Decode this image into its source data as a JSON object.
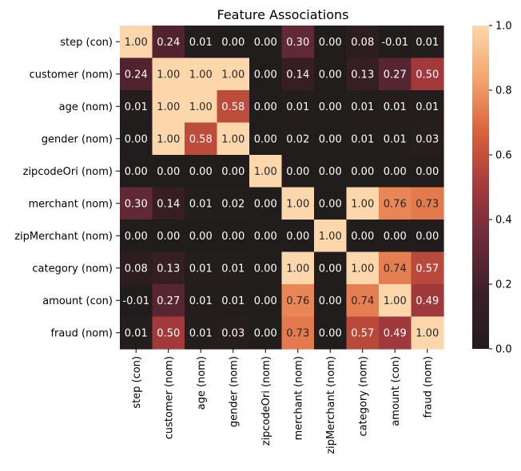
{
  "chart_data": {
    "type": "heatmap",
    "title": "Feature Associations",
    "rows": [
      "step (con)",
      "customer (nom)",
      "age (nom)",
      "gender (nom)",
      "zipcodeOri (nom)",
      "merchant (nom)",
      "zipMerchant (nom)",
      "category (nom)",
      "amount (con)",
      "fraud (nom)"
    ],
    "columns": [
      "step (con)",
      "customer (nom)",
      "age (nom)",
      "gender (nom)",
      "zipcodeOri (nom)",
      "merchant (nom)",
      "zipMerchant (nom)",
      "category (nom)",
      "amount (con)",
      "fraud (nom)"
    ],
    "values": [
      [
        1.0,
        0.24,
        0.01,
        0.0,
        0.0,
        0.3,
        0.0,
        0.08,
        -0.01,
        0.01
      ],
      [
        0.24,
        1.0,
        1.0,
        1.0,
        0.0,
        0.14,
        0.0,
        0.13,
        0.27,
        0.5
      ],
      [
        0.01,
        1.0,
        1.0,
        0.58,
        0.0,
        0.01,
        0.0,
        0.01,
        0.01,
        0.01
      ],
      [
        0.0,
        1.0,
        0.58,
        1.0,
        0.0,
        0.02,
        0.0,
        0.01,
        0.01,
        0.03
      ],
      [
        0.0,
        0.0,
        0.0,
        0.0,
        1.0,
        0.0,
        0.0,
        0.0,
        0.0,
        0.0
      ],
      [
        0.3,
        0.14,
        0.01,
        0.02,
        0.0,
        1.0,
        0.0,
        1.0,
        0.76,
        0.73
      ],
      [
        0.0,
        0.0,
        0.0,
        0.0,
        0.0,
        0.0,
        1.0,
        0.0,
        0.0,
        0.0
      ],
      [
        0.08,
        0.13,
        0.01,
        0.01,
        0.0,
        1.0,
        0.0,
        1.0,
        0.74,
        0.57
      ],
      [
        -0.01,
        0.27,
        0.01,
        0.01,
        0.0,
        0.76,
        0.0,
        0.74,
        1.0,
        0.49
      ],
      [
        0.01,
        0.5,
        0.01,
        0.03,
        0.0,
        0.73,
        0.0,
        0.57,
        0.49,
        1.0
      ]
    ],
    "value_format": "2 decimals",
    "colorbar": {
      "range": [
        0.0,
        1.0
      ],
      "ticks": [
        "0.0",
        "0.2",
        "0.4",
        "0.6",
        "0.8",
        "1.0"
      ],
      "colormap": [
        "#211d1c",
        "#3b1e26",
        "#6a2a3a",
        "#a23a3c",
        "#d9603a",
        "#f4a46c",
        "#fcd7ac"
      ]
    },
    "grid": false,
    "legend": "colorbar-right"
  }
}
